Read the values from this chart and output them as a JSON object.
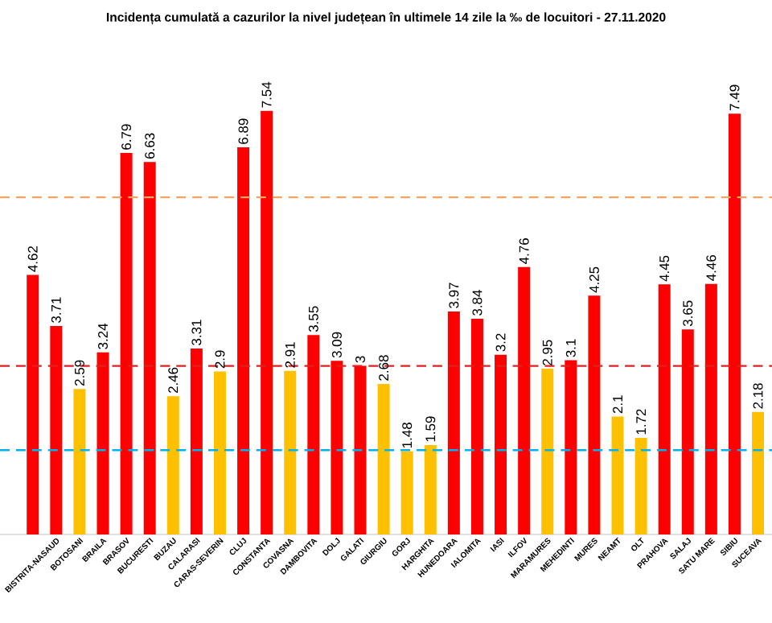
{
  "chart_data": {
    "type": "bar",
    "title": "Incidența cumulată a cazurilor la nivel județean în ultimele 14 zile la ‰ de locuitori - 27.11.2020",
    "categories": [
      null,
      "BISTRITA-NASAUD",
      "BOTOSANI",
      "BRAILA",
      "BRASOV",
      "BUCURESTI",
      "BUZAU",
      "CALARASI",
      "CARAS-SEVERIN",
      "CLUJ",
      "CONSTANTA",
      "COVASNA",
      "DAMBOVITA",
      "DOLJ",
      "GALATI",
      "GIURGIU",
      "GORJ",
      "HARGHITA",
      "HUNEDOARA",
      "IALOMITA",
      "IASI",
      "ILFOV",
      "MARAMURES",
      "MEHEDINTI",
      "MURES",
      "NEAMT",
      "OLT",
      "PRAHOVA",
      "SALAJ",
      "SATU MARE",
      "SIBIU",
      "SUCEAVA"
    ],
    "values": [
      4.62,
      3.71,
      2.59,
      3.24,
      6.79,
      6.63,
      2.46,
      3.31,
      2.9,
      6.89,
      7.54,
      2.91,
      3.55,
      3.09,
      3,
      2.68,
      1.48,
      1.59,
      3.97,
      3.84,
      3.2,
      4.76,
      2.95,
      3.1,
      4.25,
      2.1,
      1.72,
      4.45,
      3.65,
      4.46,
      7.49,
      2.18
    ],
    "colors": [
      "#ff0000",
      "#ff0000",
      "#ffc000",
      "#ff0000",
      "#ff0000",
      "#ff0000",
      "#ffc000",
      "#ff0000",
      "#ffc000",
      "#ff0000",
      "#ff0000",
      "#ffc000",
      "#ff0000",
      "#ff0000",
      "#ff0000",
      "#ffc000",
      "#ffc000",
      "#ffc000",
      "#ff0000",
      "#ff0000",
      "#ff0000",
      "#ff0000",
      "#ffc000",
      "#ff0000",
      "#ff0000",
      "#ffc000",
      "#ffc000",
      "#ff0000",
      "#ff0000",
      "#ff0000",
      "#ff0000",
      "#ffc000"
    ],
    "data_labels": true,
    "ref_lines": [
      {
        "axis": "y",
        "value": 6,
        "color": "#f4a460",
        "line_style": "dashed"
      },
      {
        "axis": "y",
        "value": 3,
        "color": "#e02020",
        "line_style": "dashed"
      },
      {
        "axis": "y",
        "value": 1.5,
        "color": "#00b0f0",
        "line_style": "dashed"
      }
    ]
  }
}
